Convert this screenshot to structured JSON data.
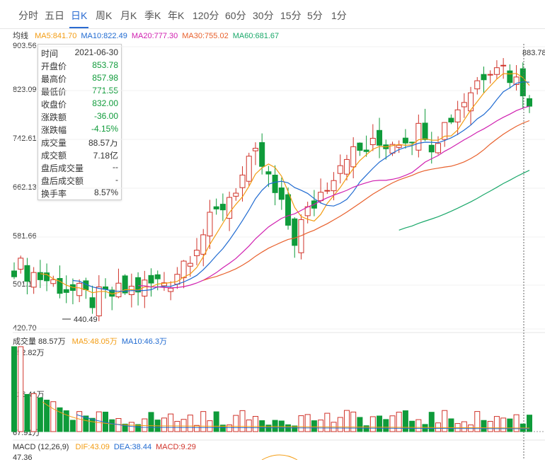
{
  "tabs": [
    {
      "label": "分时",
      "active": false
    },
    {
      "label": "五日",
      "active": false
    },
    {
      "label": "日K",
      "active": true
    },
    {
      "label": "周K",
      "active": false
    },
    {
      "label": "月K",
      "active": false
    },
    {
      "label": "季K",
      "active": false
    },
    {
      "label": "年K",
      "active": false
    },
    {
      "label": "120分",
      "active": false
    },
    {
      "label": "60分",
      "active": false
    },
    {
      "label": "30分",
      "active": false
    },
    {
      "label": "15分",
      "active": false
    },
    {
      "label": "5分",
      "active": false
    },
    {
      "label": "1分",
      "active": false
    }
  ],
  "price_panel": {
    "label": "均线",
    "ma": [
      {
        "text": "MA5:841.70",
        "color": "#f39c12"
      },
      {
        "text": "MA10:822.49",
        "color": "#1f6ad1"
      },
      {
        "text": "MA20:777.30",
        "color": "#d020b0"
      },
      {
        "text": "MA30:755.02",
        "color": "#e8602c"
      },
      {
        "text": "MA60:681.67",
        "color": "#1aa86a"
      }
    ],
    "y_labels": [
      "903.56",
      "823.09",
      "742.61",
      "662.13",
      "581.66",
      "501.18",
      "420.70"
    ],
    "high_marker": "883.78",
    "low_marker": "440.49"
  },
  "tooltip": [
    {
      "k": "时间",
      "v": "2021-06-30",
      "tone": "plain"
    },
    {
      "k": "开盘价",
      "v": "853.78",
      "tone": "green"
    },
    {
      "k": "最高价",
      "v": "857.98",
      "tone": "green"
    },
    {
      "k": "最低价",
      "v": "771.55",
      "tone": "green"
    },
    {
      "k": "收盘价",
      "v": "832.00",
      "tone": "green"
    },
    {
      "k": "涨跌额",
      "v": "-36.00",
      "tone": "green"
    },
    {
      "k": "涨跌幅",
      "v": "-4.15%",
      "tone": "green"
    },
    {
      "k": "成交量",
      "v": "88.57万",
      "tone": "plain"
    },
    {
      "k": "成交额",
      "v": "7.18亿",
      "tone": "plain"
    },
    {
      "k": "盘后成交量",
      "v": "--",
      "tone": "plain"
    },
    {
      "k": "盘后成交额",
      "v": "-",
      "tone": "plain"
    },
    {
      "k": "换手率",
      "v": "8.57%",
      "tone": "plain"
    }
  ],
  "volume_panel": {
    "label": "成交量 88.57万",
    "ma": [
      {
        "text": "MA5:48.05万",
        "color": "#f39c12"
      },
      {
        "text": "MA10:46.3万",
        "color": "#1f6ad1"
      }
    ],
    "y_labels": [
      "852.82万",
      "426.41万",
      "67.91万"
    ]
  },
  "macd_panel": {
    "label": "MACD (12,26,9)",
    "values": [
      {
        "text": "DIF:43.09",
        "color": "#f39c12"
      },
      {
        "text": "DEA:38.44",
        "color": "#1f6ad1"
      },
      {
        "text": "MACD:9.29",
        "color": "#d0332a"
      }
    ],
    "y_labels": [
      "47.36"
    ]
  },
  "colors": {
    "up": "#d0332a",
    "down": "#0f9b3a",
    "ma5": "#f39c12",
    "ma10": "#1f6ad1",
    "ma20": "#d020b0",
    "ma30": "#e8602c",
    "ma60": "#1aa86a"
  }
}
